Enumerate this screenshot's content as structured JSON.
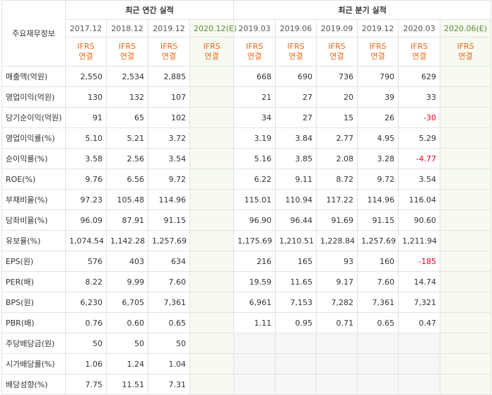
{
  "header": {
    "corner_label": "주요재무정보",
    "annual_title": "최근 연간 실적",
    "quarterly_title": "최근 분기 실적",
    "annual_periods": [
      "2017.12",
      "2018.12",
      "2019.12",
      "2020.12(E)"
    ],
    "quarterly_periods": [
      "2019.03",
      "2019.06",
      "2019.09",
      "2019.12",
      "2020.03",
      "2020.06(E)"
    ],
    "ifrs_top": "IFRS",
    "ifrs_bottom": "연결"
  },
  "rows": [
    {
      "label": "매출액(억원)",
      "values": [
        "2,550",
        "2,534",
        "2,885",
        "",
        "668",
        "690",
        "736",
        "790",
        "629",
        ""
      ]
    },
    {
      "label": "영업이익(억원)",
      "values": [
        "130",
        "132",
        "107",
        "",
        "21",
        "27",
        "20",
        "39",
        "33",
        ""
      ]
    },
    {
      "label": "당기순이익(억원)",
      "values": [
        "91",
        "65",
        "102",
        "",
        "34",
        "27",
        "15",
        "26",
        "-30",
        ""
      ]
    },
    {
      "label": "영업이익률(%)",
      "values": [
        "5.10",
        "5.21",
        "3.72",
        "",
        "3.19",
        "3.84",
        "2.77",
        "4.95",
        "5.29",
        ""
      ]
    },
    {
      "label": "순이익률(%)",
      "values": [
        "3.58",
        "2.56",
        "3.54",
        "",
        "5.16",
        "3.85",
        "2.08",
        "3.28",
        "-4.77",
        ""
      ]
    },
    {
      "label": "ROE(%)",
      "values": [
        "9.76",
        "6.56",
        "9.72",
        "",
        "6.22",
        "9.11",
        "8.72",
        "9.72",
        "3.54",
        ""
      ]
    },
    {
      "label": "부채비율(%)",
      "values": [
        "97.23",
        "105.48",
        "114.96",
        "",
        "115.01",
        "110.94",
        "117.22",
        "114.96",
        "116.04",
        ""
      ]
    },
    {
      "label": "당좌비율(%)",
      "values": [
        "96.09",
        "87.91",
        "91.15",
        "",
        "96.90",
        "96.44",
        "91.69",
        "91.15",
        "90.60",
        ""
      ]
    },
    {
      "label": "유보율(%)",
      "values": [
        "1,074.54",
        "1,142.28",
        "1,257.69",
        "",
        "1,175.69",
        "1,210.51",
        "1,228.84",
        "1,257.69",
        "1,211.94",
        ""
      ]
    },
    {
      "label": "EPS(원)",
      "values": [
        "576",
        "403",
        "634",
        "",
        "216",
        "165",
        "93",
        "160",
        "-185",
        ""
      ]
    },
    {
      "label": "PER(배)",
      "values": [
        "8.22",
        "9.99",
        "7.60",
        "",
        "19.59",
        "11.65",
        "9.17",
        "7.60",
        "14.74",
        ""
      ]
    },
    {
      "label": "BPS(원)",
      "values": [
        "6,230",
        "6,705",
        "7,361",
        "",
        "6,961",
        "7,153",
        "7,282",
        "7,361",
        "7,321",
        ""
      ]
    },
    {
      "label": "PBR(배)",
      "values": [
        "0.76",
        "0.60",
        "0.65",
        "",
        "1.11",
        "0.95",
        "0.71",
        "0.65",
        "0.47",
        ""
      ]
    },
    {
      "label": "주당배당금(원)",
      "values": [
        "50",
        "50",
        "50",
        "",
        "",
        "",
        "",
        "",
        "",
        ""
      ]
    },
    {
      "label": "시가배당률(%)",
      "values": [
        "1.06",
        "1.24",
        "1.04",
        "",
        "",
        "",
        "",
        "",
        "",
        ""
      ]
    },
    {
      "label": "배당성향(%)",
      "values": [
        "7.75",
        "11.51",
        "7.31",
        "",
        "",
        "",
        "",
        "",
        "",
        ""
      ]
    }
  ],
  "colors": {
    "ifrs": "#e8681a",
    "negative": "#e8001e",
    "estimate_bg": "#f6faf0",
    "empty_bg": "#f6f6f6"
  }
}
